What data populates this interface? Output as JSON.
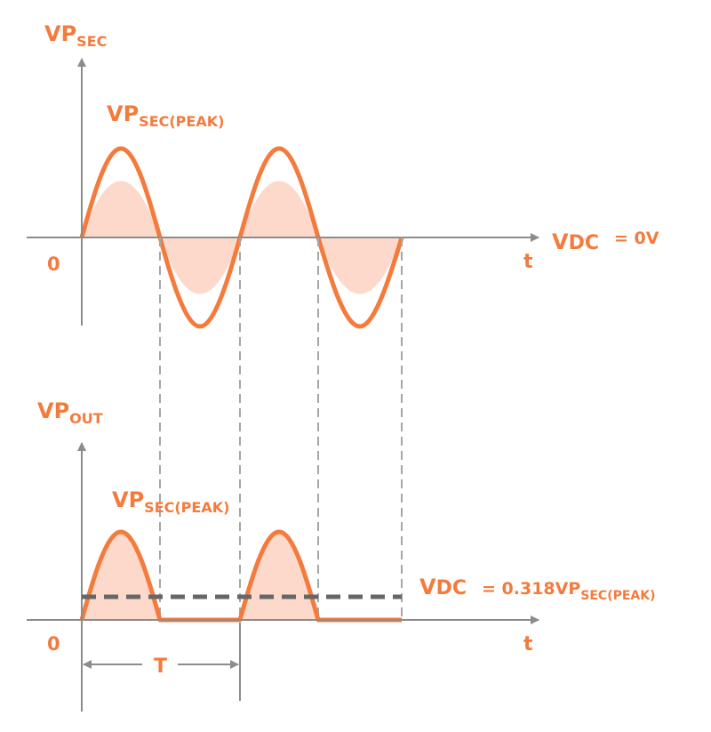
{
  "colors": {
    "accent": "#F47B3C",
    "fill": "#FCD9CB",
    "axis": "#8C8C8C",
    "dashed": "#A6A6A6",
    "dc_line": "#666666"
  },
  "top": {
    "y_label_main": "V",
    "y_label_sub1": "P",
    "y_label_sub2": "SEC",
    "origin": "0",
    "x_label": "t",
    "peak_main": "V",
    "peak_sub1": "P",
    "peak_sub2": "SEC(PEAK)",
    "vdc_main": "V",
    "vdc_sub": "DC",
    "vdc_value": "= 0V"
  },
  "bottom": {
    "y_label_main": "V",
    "y_label_sub1": "P",
    "y_label_sub2": "OUT",
    "origin": "0",
    "x_label": "t",
    "peak_main": "V",
    "peak_sub1": "P",
    "peak_sub2": "SEC(PEAK)",
    "vdc_main": "V",
    "vdc_sub": "DC",
    "vdc_value_prefix": "= 0.318V",
    "vdc_value_sub1": "P",
    "vdc_value_sub2": "SEC(PEAK)",
    "period": "T"
  }
}
